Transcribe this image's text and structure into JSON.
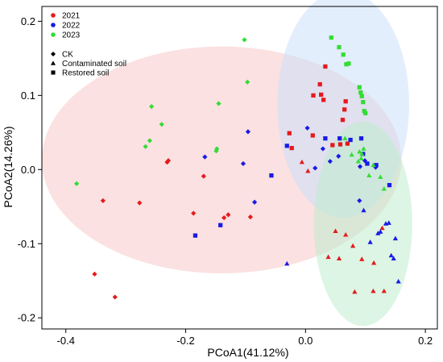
{
  "chart_data": {
    "type": "scatter",
    "title": "",
    "xlabel": "PCoA1(41.12%)",
    "ylabel": "PCoA2(14.26%)",
    "xlim": [
      -0.44,
      0.22
    ],
    "ylim": [
      -0.215,
      0.22
    ],
    "xticks": [
      "-0.4",
      "-0.2",
      "0.0",
      "0.2"
    ],
    "yticks": [
      "-0.2",
      "-0.1",
      "0.0",
      "0.1",
      "0.2"
    ],
    "grid": false,
    "legend_placement": "top-left",
    "year_legend": [
      {
        "label": "2021",
        "color": "#e41a1c"
      },
      {
        "label": "2022",
        "color": "#1a1ae6"
      },
      {
        "label": "2023",
        "color": "#33dd33"
      }
    ],
    "treatment_legend": [
      {
        "label": "CK",
        "shape": "diamond"
      },
      {
        "label": "Contaminated soil",
        "shape": "triangle"
      },
      {
        "label": "Restored soil",
        "shape": "square"
      }
    ],
    "ellipses": [
      {
        "cx": -0.14,
        "cy": 0.013,
        "rx": 0.3,
        "ry": 0.153,
        "angle_deg": 0,
        "color": "#f8c8c8"
      },
      {
        "cx": 0.063,
        "cy": 0.088,
        "rx": 0.11,
        "ry": 0.153,
        "angle_deg": 0,
        "color": "#cce0fb"
      },
      {
        "cx": 0.096,
        "cy": -0.073,
        "rx": 0.082,
        "ry": 0.138,
        "angle_deg": 0,
        "color": "#bfeccd"
      }
    ],
    "series": [
      {
        "name": "2021",
        "color": "#e41a1c",
        "points": [
          [
            -0.352,
            -0.141,
            "diamond"
          ],
          [
            -0.318,
            -0.172,
            "diamond"
          ],
          [
            -0.338,
            -0.042,
            "diamond"
          ],
          [
            -0.277,
            -0.045,
            "diamond"
          ],
          [
            -0.229,
            0.012,
            "diamond"
          ],
          [
            -0.231,
            0.01,
            "diamond"
          ],
          [
            -0.187,
            -0.059,
            "diamond"
          ],
          [
            -0.17,
            -0.009,
            "diamond"
          ],
          [
            -0.136,
            -0.065,
            "diamond"
          ],
          [
            -0.129,
            -0.061,
            "diamond"
          ],
          [
            -0.092,
            -0.064,
            "diamond"
          ],
          [
            -0.027,
            0.049,
            "square"
          ],
          [
            -0.023,
            0.029,
            "square"
          ],
          [
            0.013,
            0.1,
            "square"
          ],
          [
            0.024,
            0.115,
            "square"
          ],
          [
            0.026,
            0.101,
            "square"
          ],
          [
            0.03,
            0.094,
            "square"
          ],
          [
            0.033,
            0.139,
            "square"
          ],
          [
            0.045,
            0.033,
            "square"
          ],
          [
            0.058,
            0.034,
            "square"
          ],
          [
            0.062,
            0.067,
            "square"
          ],
          [
            0.065,
            0.081,
            "square"
          ],
          [
            0.067,
            0.092,
            "square"
          ],
          [
            0.07,
            0.035,
            "square"
          ],
          [
            0.012,
            0.046,
            "square"
          ],
          [
            -0.006,
            0.01,
            "triangle"
          ],
          [
            0.004,
            -0.002,
            "triangle"
          ],
          [
            0.038,
            -0.118,
            "triangle"
          ],
          [
            0.05,
            -0.083,
            "triangle"
          ],
          [
            0.056,
            -0.12,
            "triangle"
          ],
          [
            0.067,
            -0.088,
            "triangle"
          ],
          [
            0.079,
            -0.103,
            "triangle"
          ],
          [
            0.082,
            -0.165,
            "triangle"
          ],
          [
            0.094,
            -0.121,
            "triangle"
          ],
          [
            0.113,
            -0.164,
            "triangle"
          ],
          [
            0.114,
            -0.126,
            "triangle"
          ],
          [
            0.128,
            -0.079,
            "triangle"
          ],
          [
            0.131,
            -0.164,
            "triangle"
          ]
        ]
      },
      {
        "name": "2022",
        "color": "#1a1ae6",
        "points": [
          [
            -0.096,
            0.051,
            "diamond"
          ],
          [
            -0.168,
            0.017,
            "diamond"
          ],
          [
            -0.104,
            0.008,
            "diamond"
          ],
          [
            -0.085,
            -0.044,
            "diamond"
          ],
          [
            0.003,
            0.056,
            "diamond"
          ],
          [
            0.016,
            0.002,
            "diamond"
          ],
          [
            0.029,
            0.028,
            "diamond"
          ],
          [
            0.041,
            0.011,
            "diamond"
          ],
          [
            0.055,
            0.018,
            "diamond"
          ],
          [
            0.09,
            -0.042,
            "diamond"
          ],
          [
            0.099,
            0.012,
            "diamond"
          ],
          [
            0.117,
            0.003,
            "diamond"
          ],
          [
            0.091,
            0.004,
            "diamond"
          ],
          [
            -0.184,
            -0.089,
            "square"
          ],
          [
            -0.142,
            -0.075,
            "square"
          ],
          [
            -0.057,
            -0.008,
            "square"
          ],
          [
            -0.031,
            0.032,
            "square"
          ],
          [
            0.033,
            0.042,
            "square"
          ],
          [
            0.057,
            0.042,
            "square"
          ],
          [
            0.075,
            0.04,
            "square"
          ],
          [
            0.093,
            0.042,
            "square"
          ],
          [
            0.096,
            0.021,
            "square"
          ],
          [
            0.103,
            0.008,
            "square"
          ],
          [
            0.118,
            0.006,
            "square"
          ],
          [
            0.14,
            -0.021,
            "square"
          ],
          [
            -0.031,
            -0.127,
            "triangle"
          ],
          [
            0.097,
            -0.055,
            "triangle"
          ],
          [
            0.108,
            -0.098,
            "triangle"
          ],
          [
            0.125,
            -0.084,
            "triangle"
          ],
          [
            0.134,
            -0.073,
            "triangle"
          ],
          [
            0.139,
            -0.072,
            "triangle"
          ],
          [
            0.143,
            -0.116,
            "triangle"
          ],
          [
            0.147,
            -0.12,
            "triangle"
          ],
          [
            0.15,
            -0.093,
            "triangle"
          ],
          [
            0.155,
            -0.151,
            "triangle"
          ],
          [
            0.121,
            -0.086,
            "triangle"
          ]
        ]
      },
      {
        "name": "2023",
        "color": "#33dd33",
        "points": [
          [
            -0.382,
            -0.019,
            "diamond"
          ],
          [
            -0.267,
            0.031,
            "diamond"
          ],
          [
            -0.26,
            0.039,
            "diamond"
          ],
          [
            -0.257,
            0.085,
            "diamond"
          ],
          [
            -0.24,
            0.061,
            "diamond"
          ],
          [
            -0.149,
            0.025,
            "diamond"
          ],
          [
            -0.148,
            0.028,
            "diamond"
          ],
          [
            -0.145,
            0.089,
            "diamond"
          ],
          [
            -0.102,
            0.175,
            "diamond"
          ],
          [
            -0.097,
            0.118,
            "diamond"
          ],
          [
            0.043,
            0.178,
            "square"
          ],
          [
            0.056,
            0.165,
            "square"
          ],
          [
            0.063,
            0.155,
            "square"
          ],
          [
            0.068,
            0.142,
            "square"
          ],
          [
            0.072,
            0.143,
            "square"
          ],
          [
            0.09,
            0.111,
            "square"
          ],
          [
            0.092,
            0.104,
            "square"
          ],
          [
            0.094,
            0.099,
            "square"
          ],
          [
            0.096,
            0.091,
            "square"
          ],
          [
            0.098,
            0.079,
            "square"
          ],
          [
            0.1,
            0.076,
            "square"
          ],
          [
            0.066,
            0.042,
            "triangle"
          ],
          [
            0.077,
            0.02,
            "triangle"
          ],
          [
            0.088,
            0.011,
            "triangle"
          ],
          [
            0.09,
            0.024,
            "triangle"
          ],
          [
            0.093,
            0.015,
            "triangle"
          ],
          [
            0.097,
            0.028,
            "triangle"
          ],
          [
            0.106,
            -0.008,
            "triangle"
          ],
          [
            0.113,
            0.006,
            "triangle"
          ],
          [
            0.125,
            -0.01,
            "triangle"
          ],
          [
            0.131,
            -0.026,
            "triangle"
          ],
          [
            0.094,
            0.021,
            "triangle"
          ]
        ]
      }
    ]
  }
}
